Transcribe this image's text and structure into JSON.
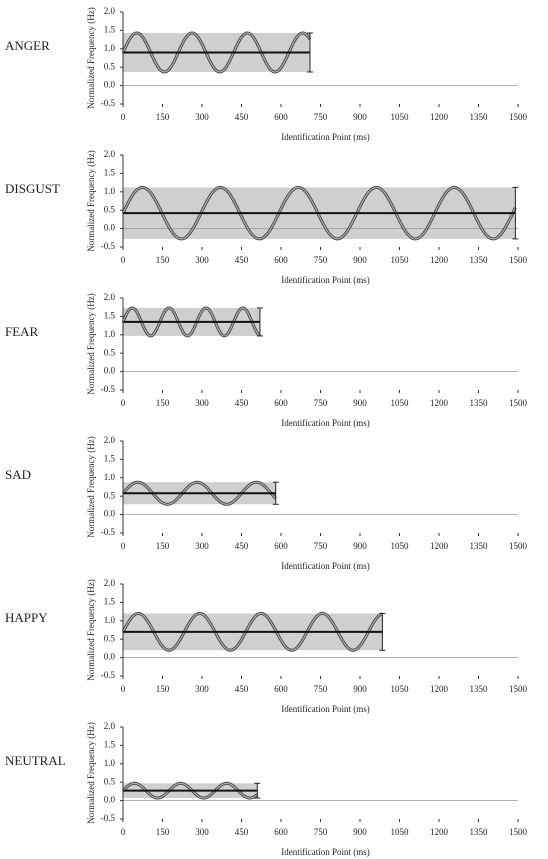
{
  "chart_data": [
    {
      "type": "sine-band",
      "title": "ANGER",
      "y_label": "Normalized Frequency (Hz)",
      "x_label": "Identification Point (ms)",
      "mean": 0.9,
      "amplitude": 0.53,
      "period": 210,
      "end": 710,
      "xlim": [
        0,
        1500
      ],
      "xticks": [
        0,
        150,
        300,
        450,
        600,
        750,
        900,
        1050,
        1200,
        1350,
        1500
      ],
      "ylim": [
        -0.5,
        2.0
      ],
      "yticks": [
        {
          "value": -0.5,
          "label": "-0.5"
        },
        {
          "value": 0,
          "label": "0.0"
        },
        {
          "value": 0.5,
          "label": "0.5"
        },
        {
          "value": 1,
          "label": "1.0"
        },
        {
          "value": 1.5,
          "label": "1.5"
        },
        {
          "value": 2,
          "label": "2.0"
        }
      ]
    },
    {
      "type": "sine-band",
      "title": "DISGUST",
      "y_label": "Normalized Frequency (Hz)",
      "x_label": "Identification Point (ms)",
      "mean": 0.42,
      "amplitude": 0.7,
      "period": 296,
      "end": 1490,
      "xlim": [
        0,
        1500
      ],
      "xticks": [
        0,
        150,
        300,
        450,
        600,
        750,
        900,
        1050,
        1200,
        1350,
        1500
      ],
      "ylim": [
        -0.5,
        2.0
      ],
      "yticks": [
        {
          "value": -0.5,
          "label": "-0.5"
        },
        {
          "value": 0,
          "label": "0.0"
        },
        {
          "value": 0.5,
          "label": "0.5"
        },
        {
          "value": 1,
          "label": "1.0"
        },
        {
          "value": 1.5,
          "label": "1.5"
        },
        {
          "value": 2,
          "label": "2.0"
        }
      ]
    },
    {
      "type": "sine-band",
      "title": "FEAR",
      "y_label": "Normalized Frequency (Hz)",
      "x_label": "Identification Point (ms)",
      "mean": 1.35,
      "amplitude": 0.38,
      "period": 140,
      "end": 520,
      "xlim": [
        0,
        1500
      ],
      "xticks": [
        0,
        150,
        300,
        450,
        600,
        750,
        900,
        1050,
        1200,
        1350,
        1500
      ],
      "ylim": [
        -0.5,
        2.0
      ],
      "yticks": [
        {
          "value": -0.5,
          "label": "-0.5"
        },
        {
          "value": 0,
          "label": "0.0"
        },
        {
          "value": 0.5,
          "label": "0.5"
        },
        {
          "value": 1,
          "label": "1.0"
        },
        {
          "value": 1.5,
          "label": "1.5"
        },
        {
          "value": 2,
          "label": "2.0"
        }
      ]
    },
    {
      "type": "sine-band",
      "title": "SAD",
      "y_label": "Normalized Frequency (Hz)",
      "x_label": "Identification Point (ms)",
      "mean": 0.58,
      "amplitude": 0.3,
      "period": 225,
      "end": 580,
      "xlim": [
        0,
        1500
      ],
      "xticks": [
        0,
        150,
        300,
        450,
        600,
        750,
        900,
        1050,
        1200,
        1350,
        1500
      ],
      "ylim": [
        -0.5,
        2.0
      ],
      "yticks": [
        {
          "value": -0.5,
          "label": "-0.5"
        },
        {
          "value": 0,
          "label": "0.0"
        },
        {
          "value": 0.5,
          "label": "0.5"
        },
        {
          "value": 1,
          "label": "1.0"
        },
        {
          "value": 1.5,
          "label": "1.5"
        },
        {
          "value": 2,
          "label": "2.0"
        }
      ]
    },
    {
      "type": "sine-band",
      "title": "HAPPY",
      "y_label": "Normalized Frequency (Hz)",
      "x_label": "Identification Point (ms)",
      "mean": 0.7,
      "amplitude": 0.5,
      "period": 233,
      "end": 985,
      "xlim": [
        0,
        1500
      ],
      "xticks": [
        0,
        150,
        300,
        450,
        600,
        750,
        900,
        1050,
        1200,
        1350,
        1500
      ],
      "ylim": [
        -0.5,
        2.0
      ],
      "yticks": [
        {
          "value": -0.5,
          "label": "-0.5"
        },
        {
          "value": 0,
          "label": "0.0"
        },
        {
          "value": 0.5,
          "label": "0.5"
        },
        {
          "value": 1,
          "label": "1.0"
        },
        {
          "value": 1.5,
          "label": "1.5"
        },
        {
          "value": 2,
          "label": "2.0"
        }
      ]
    },
    {
      "type": "sine-band",
      "title": "NEUTRAL",
      "y_label": "Normalized Frequency (Hz)",
      "x_label": "Identification Point (ms)",
      "mean": 0.27,
      "amplitude": 0.2,
      "period": 175,
      "end": 510,
      "xlim": [
        0,
        1500
      ],
      "xticks": [
        0,
        150,
        300,
        450,
        600,
        750,
        900,
        1050,
        1200,
        1350,
        1500
      ],
      "ylim": [
        -0.5,
        2.0
      ],
      "yticks": [
        {
          "value": -0.5,
          "label": "-0.5"
        },
        {
          "value": 0,
          "label": "0.0"
        },
        {
          "value": 0.5,
          "label": "0.5"
        },
        {
          "value": 1,
          "label": "1.0"
        },
        {
          "value": 1.5,
          "label": "1.5"
        },
        {
          "value": 2,
          "label": "2.0"
        }
      ]
    }
  ]
}
